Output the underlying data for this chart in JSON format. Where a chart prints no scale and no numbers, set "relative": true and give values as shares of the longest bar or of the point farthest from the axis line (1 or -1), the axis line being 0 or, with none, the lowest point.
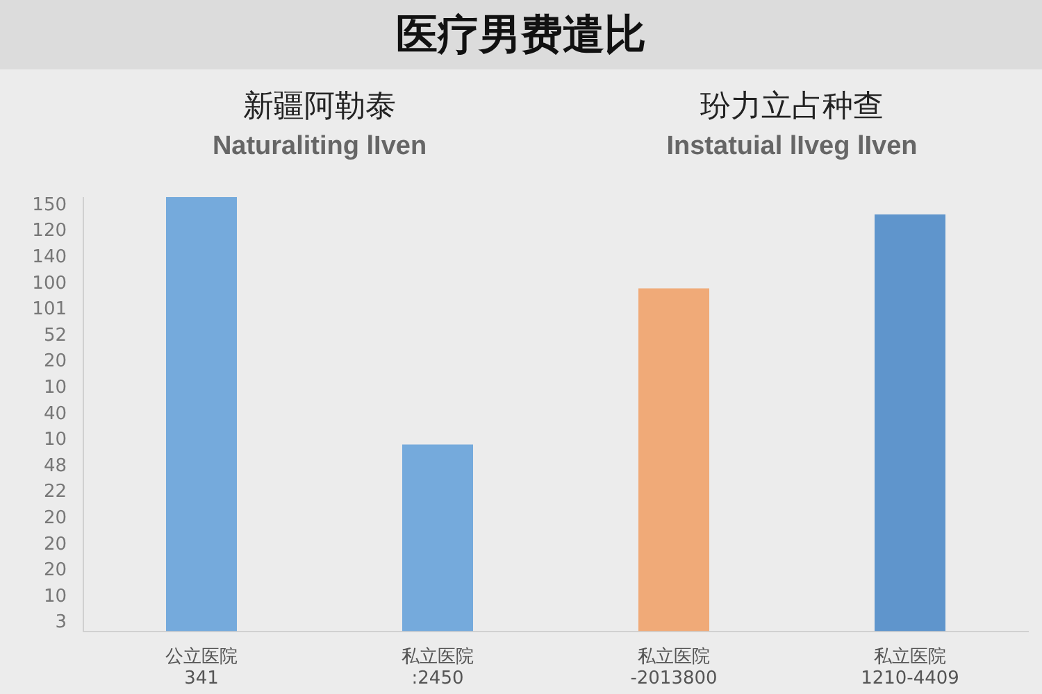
{
  "chart_data": {
    "type": "bar",
    "title": "医疗男费遣比",
    "relative": true,
    "categories": [
      "公立医院\n341",
      "私立医院\n:2450",
      "私立医院\n-2013800",
      "私立医院\n1210-4409"
    ],
    "values": [
      1,
      0.43,
      0.79,
      0.96
    ],
    "colors": [
      "#75aadc",
      "#75aadc",
      "#f0aa78",
      "#5f95cc"
    ],
    "annotations": [
      "新疆阿勒泰\nNaturaliting lIven",
      "玢力立占种查\nInstatuial lIveg lIven",
      "150",
      "120",
      "140",
      "100",
      "101",
      "52",
      "20",
      "10",
      "40",
      "10",
      "48",
      "22",
      "20",
      "20",
      "20",
      "10",
      "3"
    ]
  }
}
